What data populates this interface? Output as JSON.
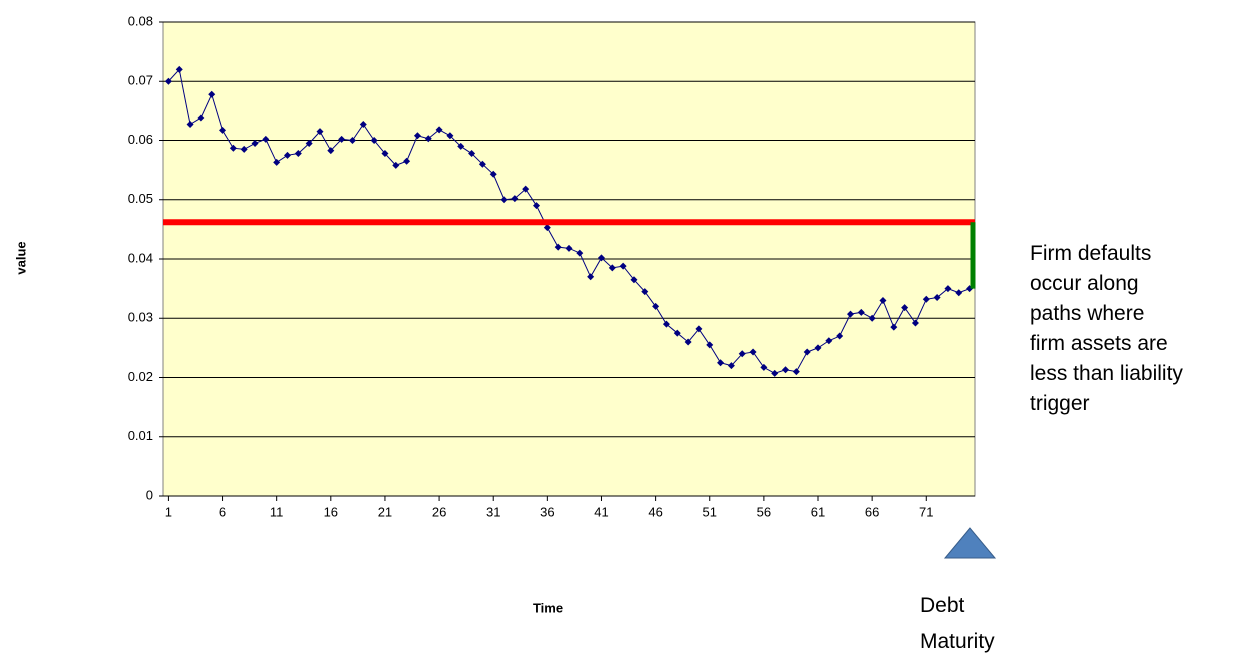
{
  "chart_data": {
    "type": "line",
    "x_label": "Time",
    "y_label": "value",
    "x": [
      1,
      2,
      3,
      4,
      5,
      6,
      7,
      8,
      9,
      10,
      11,
      12,
      13,
      14,
      15,
      16,
      17,
      18,
      19,
      20,
      21,
      22,
      23,
      24,
      25,
      26,
      27,
      28,
      29,
      30,
      31,
      32,
      33,
      34,
      35,
      36,
      37,
      38,
      39,
      40,
      41,
      42,
      43,
      44,
      45,
      46,
      47,
      48,
      49,
      50,
      51,
      52,
      53,
      54,
      55,
      56,
      57,
      58,
      59,
      60,
      61,
      62,
      63,
      64,
      65,
      66,
      67,
      68,
      69,
      70,
      71,
      72,
      73,
      74,
      75
    ],
    "xlim": [
      0.5,
      75.5
    ],
    "xticks": [
      1,
      6,
      11,
      16,
      21,
      26,
      31,
      36,
      41,
      46,
      51,
      56,
      61,
      66,
      71
    ],
    "ylim": [
      0,
      0.08
    ],
    "yticks": [
      0,
      0.01,
      0.02,
      0.03,
      0.04,
      0.05,
      0.06,
      0.07,
      0.08
    ],
    "grid": true,
    "plot_background": "#ffffcc",
    "series": [
      {
        "color": "#000080",
        "values": [
          0.07,
          0.072,
          0.0627,
          0.0638,
          0.0678,
          0.0617,
          0.0587,
          0.0585,
          0.0595,
          0.0602,
          0.0563,
          0.0575,
          0.0578,
          0.0595,
          0.0615,
          0.0583,
          0.0602,
          0.06,
          0.0627,
          0.06,
          0.0578,
          0.0558,
          0.0565,
          0.0608,
          0.0603,
          0.0618,
          0.0608,
          0.059,
          0.0578,
          0.056,
          0.0543,
          0.05,
          0.0502,
          0.0518,
          0.049,
          0.0453,
          0.042,
          0.0418,
          0.041,
          0.037,
          0.0402,
          0.0385,
          0.0388,
          0.0365,
          0.0345,
          0.032,
          0.029,
          0.0275,
          0.026,
          0.0282,
          0.0255,
          0.0225,
          0.022,
          0.024,
          0.0243,
          0.0217,
          0.0207,
          0.0213,
          0.021,
          0.0243,
          0.025,
          0.0262,
          0.027,
          0.0307,
          0.031,
          0.03,
          0.033,
          0.0285,
          0.0318,
          0.0292,
          0.0332,
          0.0335,
          0.035,
          0.0343,
          0.035
        ]
      }
    ],
    "trigger": {
      "value": 0.0462,
      "color": "#ff0000"
    },
    "gap_color": "#008000",
    "annotation_lines": [
      "Firm defaults",
      "occur along",
      "paths where",
      "firm assets are",
      "less than liability",
      "trigger"
    ],
    "maturity_label_lines": [
      "Debt",
      "Maturity"
    ]
  }
}
